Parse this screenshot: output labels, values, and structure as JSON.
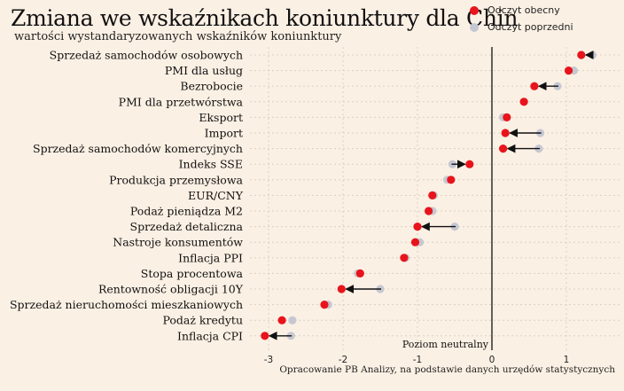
{
  "header": {
    "title": "Zmiana we wskaźnikach koniunktury dla Chin",
    "subtitle": "wartości wystandaryzowanych wskaźników koniunktury"
  },
  "legend": {
    "current_label": "Odczyt obecny",
    "previous_label": "Odczyt poprzedni"
  },
  "source": "Opracowanie PB Analizy, na podstawie danych urzędów statystycznych",
  "colors": {
    "current": "#e8141c",
    "previous": "#c5c8d2",
    "arrow": "#111111",
    "grid": "#d9cfc4",
    "background": "#fbf0e4"
  },
  "chart_data": {
    "type": "dot_arrow",
    "title": "Zmiana we wskaźnikach koniunktury dla Chin",
    "subtitle": "wartości wystandaryzowanych wskaźników koniunktury",
    "xlim": [
      -3.2,
      1.4
    ],
    "x_ticks": [
      -3,
      -2,
      -1,
      0,
      1
    ],
    "neutral_label": "Poziom neutralny",
    "grid": true,
    "series_names": [
      "Odczyt obecny",
      "Odczyt poprzedni"
    ],
    "rows": [
      {
        "label": "Sprzedaż samochodów osobowych",
        "current": 1.2,
        "previous": 1.35
      },
      {
        "label": "PMI dla usług",
        "current": 1.03,
        "previous": 1.1
      },
      {
        "label": "Bezrobocie",
        "current": 0.57,
        "previous": 0.88
      },
      {
        "label": "PMI dla przetwórstwa",
        "current": 0.43,
        "previous": 0.43
      },
      {
        "label": "Eksport",
        "current": 0.2,
        "previous": 0.15
      },
      {
        "label": "Import",
        "current": 0.18,
        "previous": 0.65
      },
      {
        "label": "Sprzedaż samochodów komercyjnych",
        "current": 0.15,
        "previous": 0.63
      },
      {
        "label": "Indeks SSE",
        "current": -0.3,
        "previous": -0.53
      },
      {
        "label": "Produkcja przemysłowa",
        "current": -0.55,
        "previous": -0.6
      },
      {
        "label": "EUR/CNY",
        "current": -0.8,
        "previous": -0.78
      },
      {
        "label": "Podaż pieniądza M2",
        "current": -0.85,
        "previous": -0.8
      },
      {
        "label": "Sprzedaż detaliczna",
        "current": -1.0,
        "previous": -0.5
      },
      {
        "label": "Nastroje konsumentów",
        "current": -1.03,
        "previous": -0.97
      },
      {
        "label": "Inflacja PPI",
        "current": -1.18,
        "previous": -1.16
      },
      {
        "label": "Stopa procentowa",
        "current": -1.77,
        "previous": -1.8
      },
      {
        "label": "Rentowność obligacji 10Y",
        "current": -2.02,
        "previous": -1.5
      },
      {
        "label": "Sprzedaż nieruchomości mieszkaniowych",
        "current": -2.25,
        "previous": -2.2
      },
      {
        "label": "Podaż kredytu",
        "current": -2.82,
        "previous": -2.68
      },
      {
        "label": "Inflacja CPI",
        "current": -3.05,
        "previous": -2.7
      }
    ]
  }
}
